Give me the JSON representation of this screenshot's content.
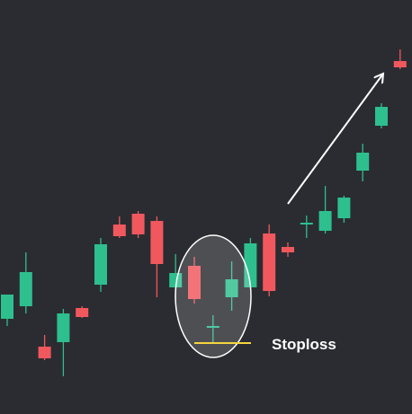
{
  "chart_data": {
    "type": "candlestick",
    "title": "",
    "xlabel": "",
    "ylabel": "",
    "grid": false,
    "legend": "none",
    "colors": {
      "background": "#2b2c31",
      "up": "#2ebf8e",
      "down": "#f0585e",
      "stoploss_line": "#f5d53f",
      "highlight": "#ffffff",
      "arrow": "#ffffff"
    },
    "ylim": [
      0,
      461
    ],
    "candles": [
      {
        "open": 106,
        "high": 132,
        "low": 98,
        "close": 133
      },
      {
        "open": 120,
        "high": 180,
        "low": 112,
        "close": 158
      },
      {
        "open": 75,
        "high": 88,
        "low": 60,
        "close": 62
      },
      {
        "open": 80,
        "high": 117,
        "low": 42,
        "close": 112
      },
      {
        "open": 118,
        "high": 120,
        "low": 107,
        "close": 108
      },
      {
        "open": 144,
        "high": 196,
        "low": 136,
        "close": 189
      },
      {
        "open": 211,
        "high": 220,
        "low": 196,
        "close": 198
      },
      {
        "open": 223,
        "high": 226,
        "low": 196,
        "close": 200
      },
      {
        "open": 215,
        "high": 220,
        "low": 130,
        "close": 167
      },
      {
        "open": 141,
        "high": 178,
        "low": 127,
        "close": 157
      },
      {
        "open": 165,
        "high": 175,
        "low": 123,
        "close": 128
      },
      {
        "open": 98,
        "high": 110,
        "low": 80,
        "close": 98
      },
      {
        "open": 130,
        "high": 170,
        "low": 115,
        "close": 150
      },
      {
        "open": 141,
        "high": 196,
        "low": 141,
        "close": 190
      },
      {
        "open": 201,
        "high": 211,
        "low": 131,
        "close": 137
      },
      {
        "open": 186,
        "high": 191,
        "low": 175,
        "close": 180
      },
      {
        "open": 211,
        "high": 221,
        "low": 196,
        "close": 213
      },
      {
        "open": 204,
        "high": 254,
        "low": 201,
        "close": 226
      },
      {
        "open": 218,
        "high": 243,
        "low": 213,
        "close": 241
      },
      {
        "open": 271,
        "high": 301,
        "low": 259,
        "close": 291
      },
      {
        "open": 321,
        "high": 346,
        "low": 318,
        "close": 342
      },
      {
        "open": 393,
        "high": 406,
        "low": 384,
        "close": 386
      }
    ],
    "annotations": [
      {
        "type": "text",
        "text": "Stoploss"
      },
      {
        "type": "line",
        "label": "stoploss-level",
        "y": 79
      },
      {
        "type": "ellipse",
        "label": "consolidation-zone"
      },
      {
        "type": "arrow",
        "label": "uptrend-arrow"
      }
    ]
  }
}
